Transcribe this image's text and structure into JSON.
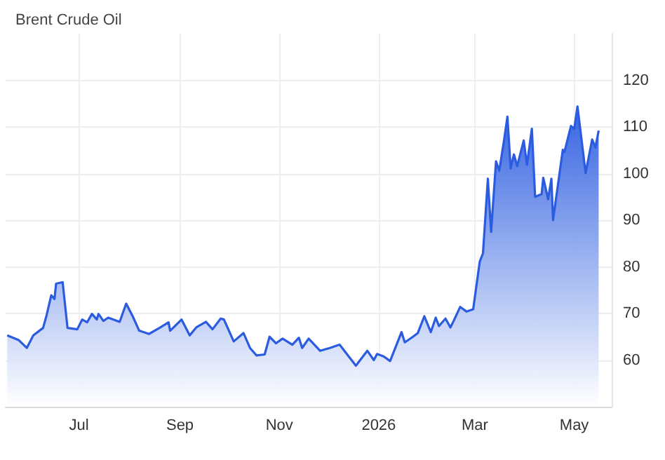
{
  "chart_data": {
    "type": "area",
    "title": "Brent Crude Oil",
    "x": [
      "2025-05-18",
      "2025-05-25",
      "2025-05-30",
      "2025-06-03",
      "2025-06-09",
      "2025-06-11",
      "2025-06-14",
      "2025-06-16",
      "2025-06-17",
      "2025-06-21",
      "2025-06-24",
      "2025-06-30",
      "2025-07-03",
      "2025-07-06",
      "2025-07-09",
      "2025-07-12",
      "2025-07-13",
      "2025-07-16",
      "2025-07-19",
      "2025-07-26",
      "2025-07-30",
      "2025-08-03",
      "2025-08-07",
      "2025-08-13",
      "2025-08-20",
      "2025-08-25",
      "2025-08-26",
      "2025-09-02",
      "2025-09-07",
      "2025-09-11",
      "2025-09-17",
      "2025-09-21",
      "2025-09-26",
      "2025-09-28",
      "2025-10-04",
      "2025-10-10",
      "2025-10-14",
      "2025-10-18",
      "2025-10-23",
      "2025-10-26",
      "2025-10-30",
      "2025-11-03",
      "2025-11-09",
      "2025-11-13",
      "2025-11-15",
      "2025-11-19",
      "2025-11-26",
      "2025-12-02",
      "2025-12-08",
      "2025-12-18",
      "2025-12-25",
      "2025-12-29",
      "2025-12-31",
      "2026-01-04",
      "2026-01-08",
      "2026-01-15",
      "2026-01-17",
      "2026-01-22",
      "2026-01-25",
      "2026-01-29",
      "2026-02-02",
      "2026-02-05",
      "2026-02-07",
      "2026-02-11",
      "2026-02-14",
      "2026-02-16",
      "2026-02-20",
      "2026-02-24",
      "2026-02-28",
      "2026-03-04",
      "2026-03-06",
      "2026-03-09",
      "2026-03-11",
      "2026-03-14",
      "2026-03-16",
      "2026-03-19",
      "2026-03-21",
      "2026-03-23",
      "2026-03-25",
      "2026-03-27",
      "2026-03-31",
      "2026-04-02",
      "2026-04-05",
      "2026-04-07",
      "2026-04-11",
      "2026-04-12",
      "2026-04-15",
      "2026-04-17",
      "2026-04-18",
      "2026-04-24",
      "2026-04-25",
      "2026-04-29",
      "2026-05-01",
      "2026-05-03",
      "2026-05-08",
      "2026-05-12",
      "2026-05-14",
      "2026-05-16"
    ],
    "series": [
      {
        "color": "#2b5ce0",
        "values": [
          65.3,
          64.3,
          62.6,
          65.3,
          66.9,
          69.4,
          73.9,
          73.1,
          76.4,
          76.7,
          66.9,
          66.6,
          68.7,
          68.1,
          69.9,
          68.7,
          69.9,
          68.4,
          69.1,
          68.2,
          72.1,
          69.4,
          66.3,
          65.6,
          67.0,
          68.1,
          66.3,
          68.7,
          65.3,
          67.0,
          68.2,
          66.6,
          68.9,
          68.7,
          64.0,
          65.8,
          62.6,
          61.0,
          61.2,
          65.0,
          63.6,
          64.6,
          63.3,
          64.8,
          62.6,
          64.6,
          62.0,
          62.6,
          63.3,
          58.8,
          62.0,
          60.0,
          61.3,
          60.8,
          59.8,
          66.0,
          63.8,
          65.0,
          65.8,
          69.4,
          66.0,
          69.1,
          67.3,
          68.9,
          67.0,
          68.4,
          71.4,
          70.4,
          70.9,
          81.1,
          82.9,
          98.9,
          87.5,
          102.6,
          100.6,
          107.3,
          112.2,
          101.1,
          104.1,
          101.6,
          107.1,
          101.9,
          109.6,
          95.0,
          95.6,
          99.1,
          94.5,
          98.9,
          90.0,
          105.1,
          104.6,
          110.2,
          109.6,
          114.4,
          100.1,
          107.3,
          105.6,
          109.2
        ]
      }
    ],
    "xlim": [
      "2025-05-17",
      "2026-05-24"
    ],
    "xticks": [
      {
        "value": "2025-07-01",
        "label": "Jul"
      },
      {
        "value": "2025-09-01",
        "label": "Sep"
      },
      {
        "value": "2025-11-01",
        "label": "Nov"
      },
      {
        "value": "2026-01-01",
        "label": "2026"
      },
      {
        "value": "2026-03-01",
        "label": "Mar"
      },
      {
        "value": "2026-05-01",
        "label": "May"
      }
    ],
    "ylim": [
      50,
      130
    ],
    "yticks": [
      60,
      70,
      80,
      90,
      100,
      110,
      120
    ],
    "grid": true,
    "marker": "none",
    "line_style": "solid"
  }
}
